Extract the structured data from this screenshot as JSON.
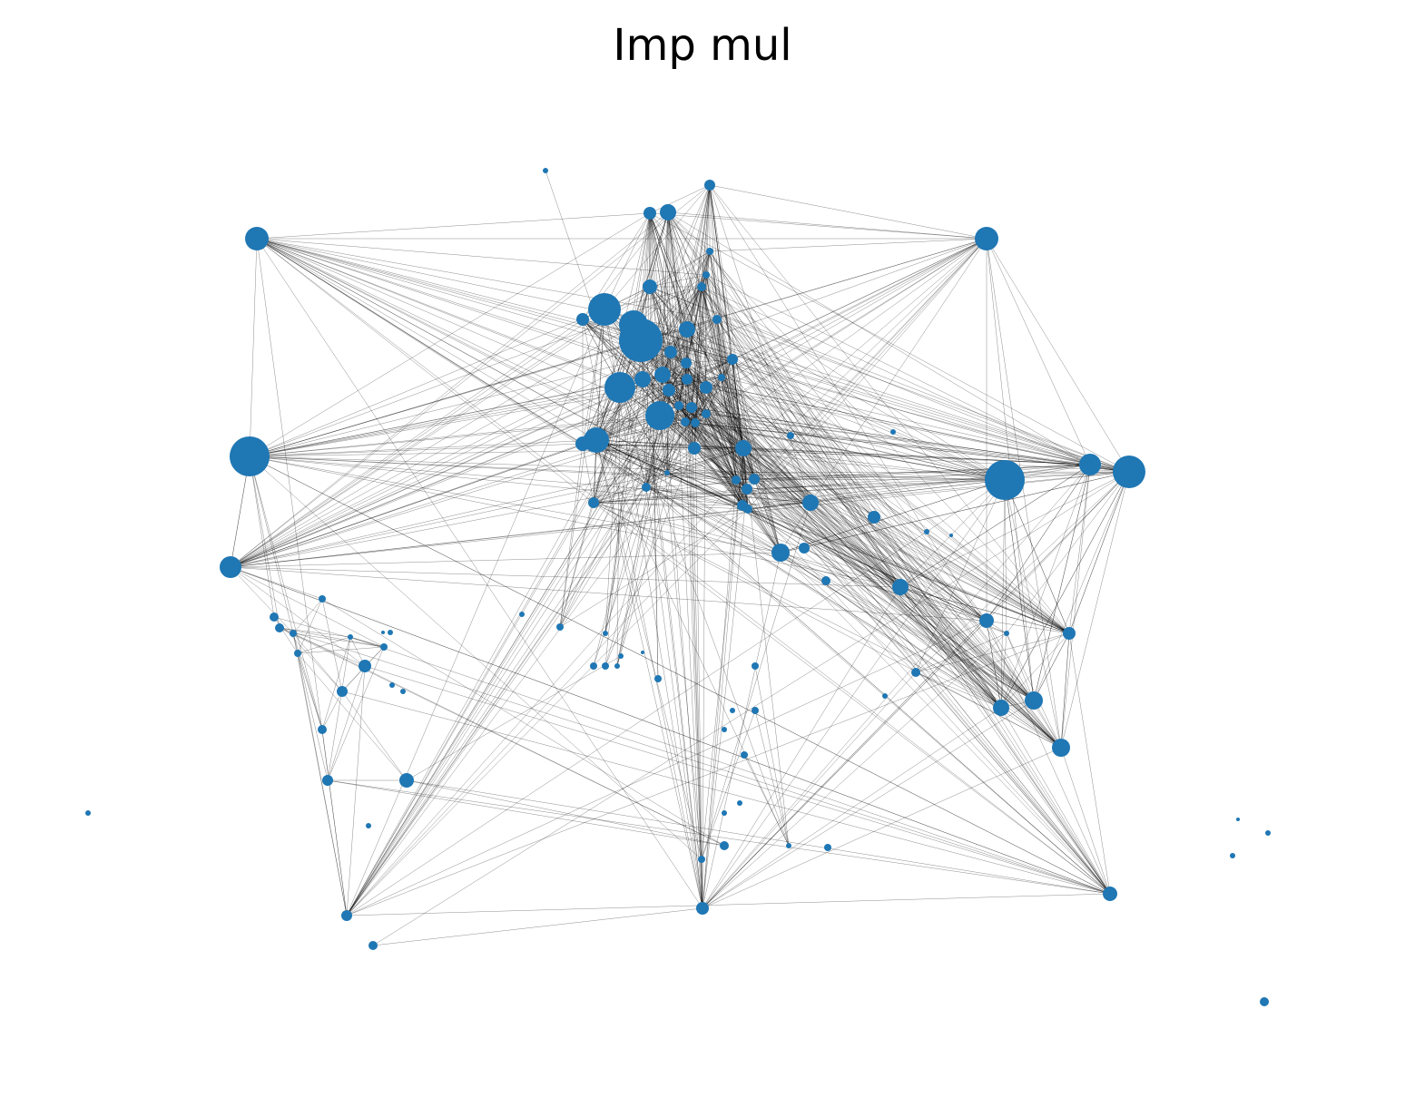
{
  "title": "Imp mul",
  "colors": {
    "node": "#1f77b4",
    "edge": "#000000",
    "background": "#ffffff"
  },
  "chart_data": {
    "type": "network",
    "title": "Imp mul",
    "node_color": "#1f77b4",
    "edge_color": "#000000",
    "node_count": 112
  }
}
